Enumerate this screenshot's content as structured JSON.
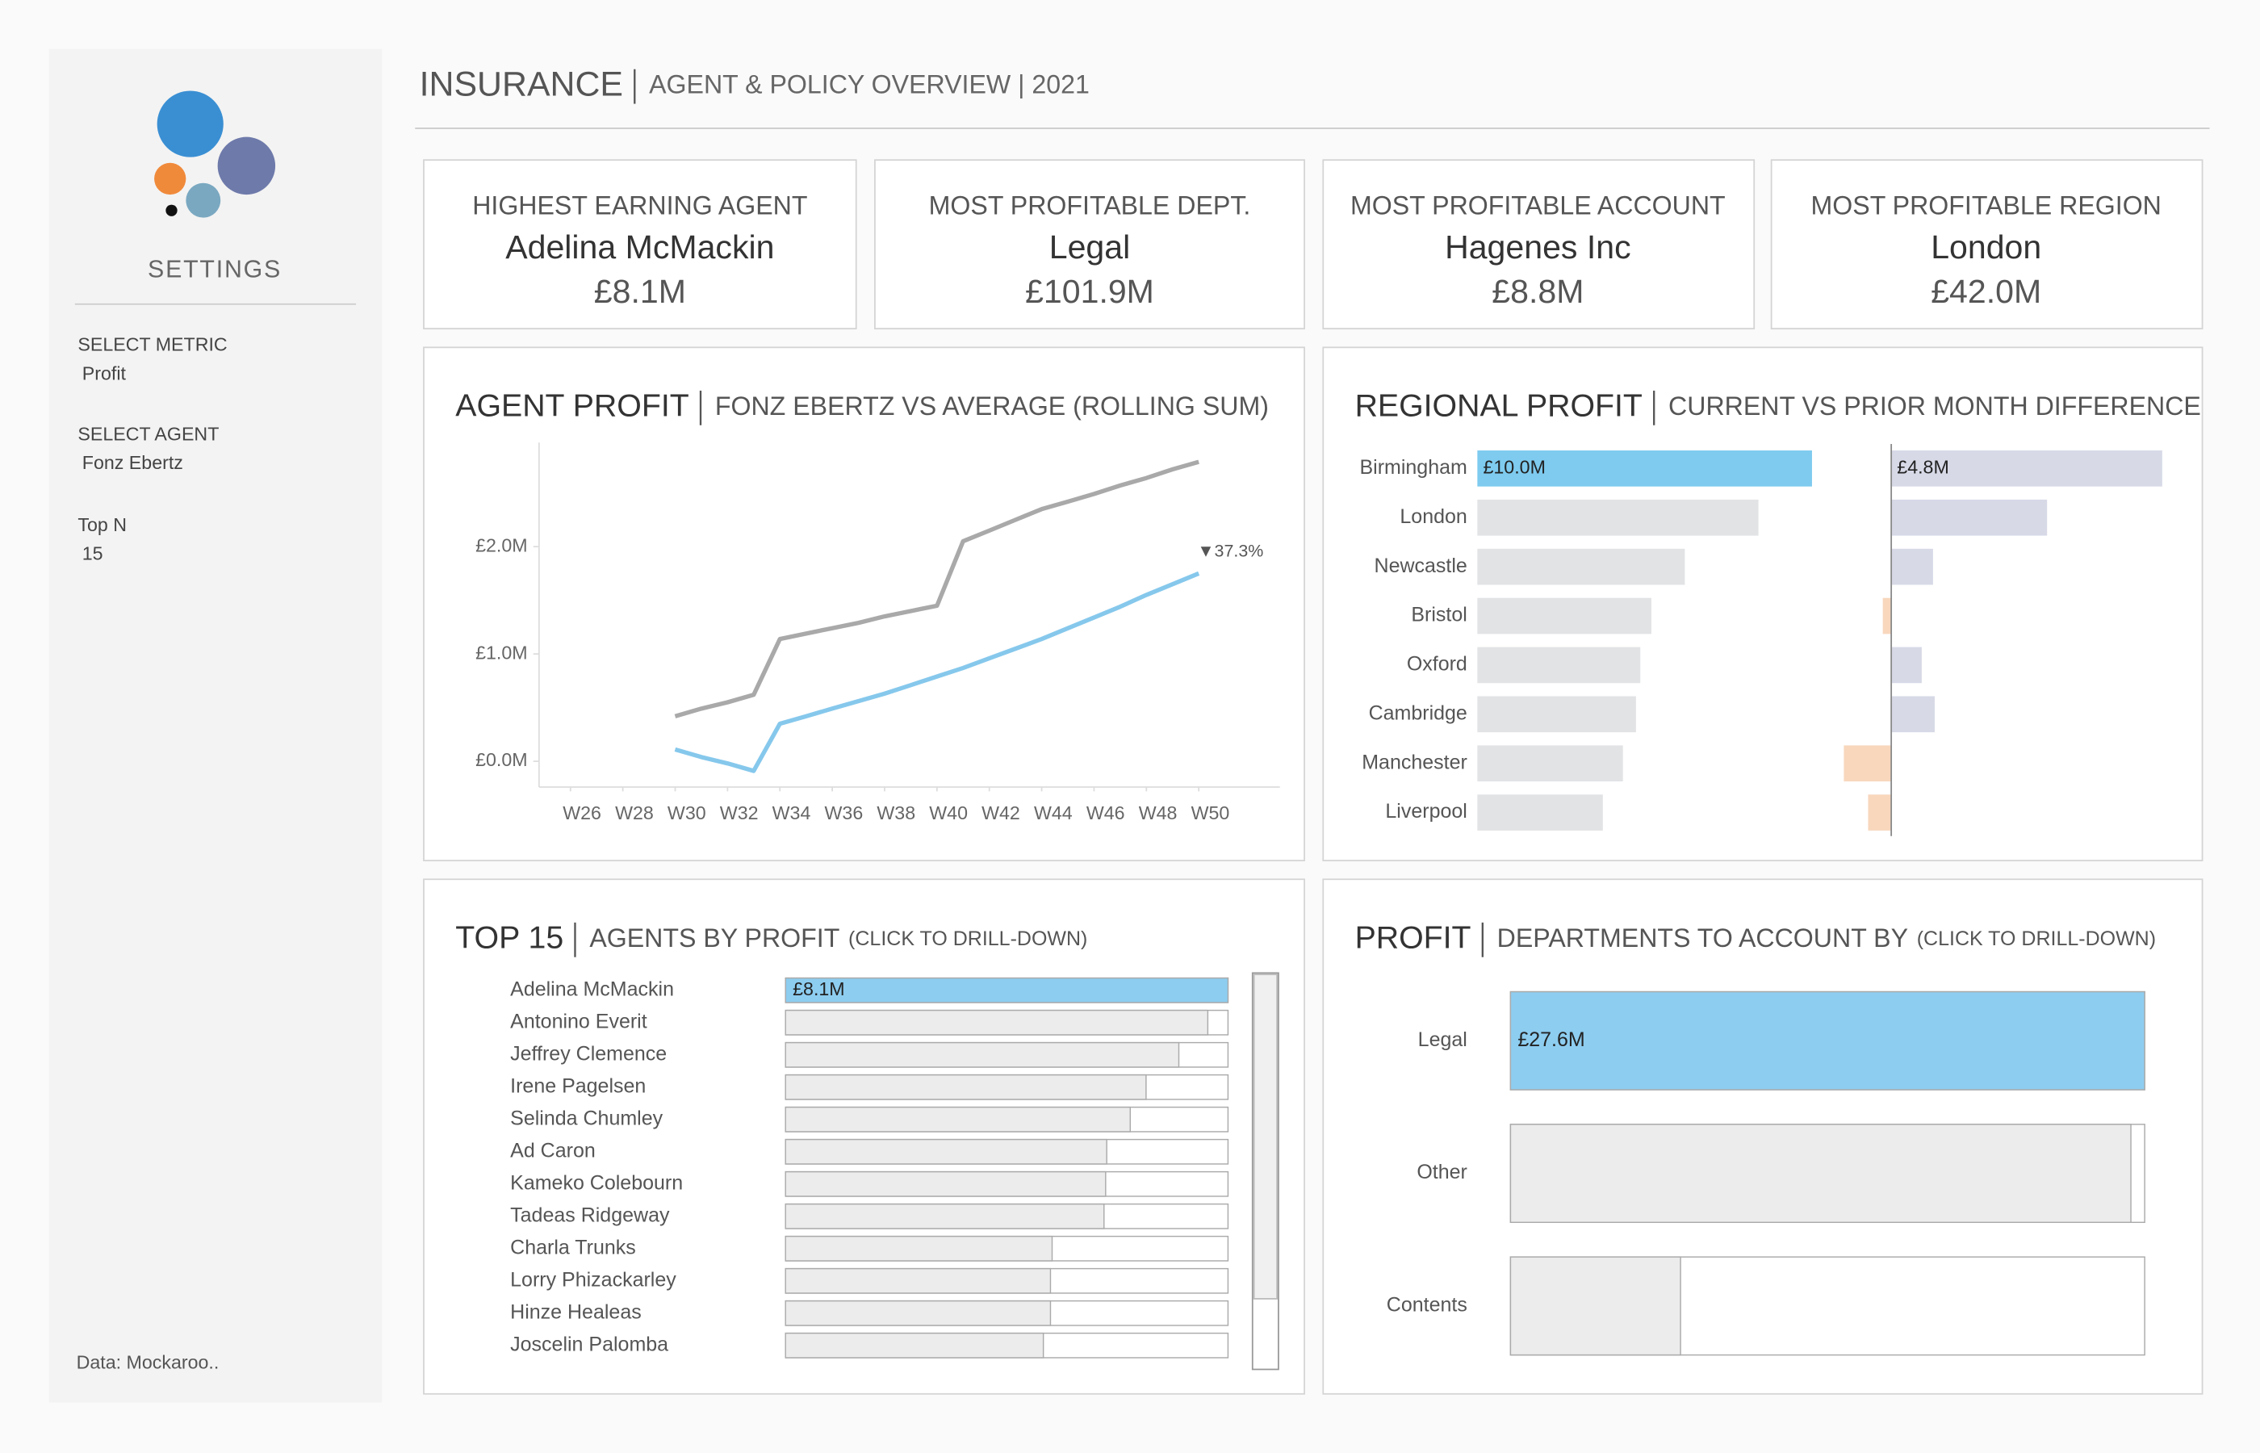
{
  "header": {
    "title": "INSURANCE",
    "subtitle": "AGENT & POLICY OVERVIEW | 2021"
  },
  "sidebar": {
    "heading": "SETTINGS",
    "filters": [
      {
        "label": "SELECT METRIC",
        "value": "Profit"
      },
      {
        "label": "SELECT AGENT",
        "value": "Fonz Ebertz"
      },
      {
        "label": "Top N",
        "value": 15
      }
    ],
    "source": "Data: Mockaroo.."
  },
  "kpis": [
    {
      "label": "HIGHEST EARNING AGENT",
      "name": "Adelina McMackin",
      "value": "£8.1M"
    },
    {
      "label": "MOST PROFITABLE DEPT.",
      "name": "Legal",
      "value": "£101.9M"
    },
    {
      "label": "MOST PROFITABLE ACCOUNT",
      "name": "Hagenes Inc",
      "value": "£8.8M"
    },
    {
      "label": "MOST PROFITABLE REGION",
      "name": "London",
      "value": "£42.0M"
    }
  ],
  "chart_data": [
    {
      "type": "line",
      "title": "AGENT PROFIT",
      "subtitle": "FONZ EBERTZ VS AVERAGE (ROLLING SUM)",
      "x": [
        30,
        31,
        32,
        33,
        34,
        35,
        36,
        37,
        38,
        39,
        40,
        41,
        42,
        43,
        44,
        45,
        46,
        47,
        48,
        49,
        50
      ],
      "series": [
        {
          "color": "#a9a9a9",
          "values": [
            0.42,
            0.49,
            0.55,
            0.62,
            1.14,
            1.19,
            1.24,
            1.29,
            1.35,
            1.4,
            1.45,
            2.05,
            2.15,
            2.25,
            2.35,
            2.42,
            2.49,
            2.57,
            2.64,
            2.72,
            2.79
          ]
        },
        {
          "color": "#86c8ec",
          "values": [
            0.11,
            0.04,
            -0.02,
            -0.09,
            0.35,
            0.42,
            0.49,
            0.56,
            0.63,
            0.71,
            0.79,
            0.87,
            0.96,
            1.05,
            1.14,
            1.24,
            1.34,
            1.44,
            1.55,
            1.65,
            1.75
          ]
        }
      ],
      "xlim": [
        24.8,
        53.1
      ],
      "xticks": [
        {
          "value": 26,
          "label": "W26"
        },
        {
          "value": 28,
          "label": "W28"
        },
        {
          "value": 30,
          "label": "W30"
        },
        {
          "value": 32,
          "label": "W32"
        },
        {
          "value": 34,
          "label": "W34"
        },
        {
          "value": 36,
          "label": "W36"
        },
        {
          "value": 38,
          "label": "W38"
        },
        {
          "value": 40,
          "label": "W40"
        },
        {
          "value": 42,
          "label": "W42"
        },
        {
          "value": 44,
          "label": "W44"
        },
        {
          "value": 46,
          "label": "W46"
        },
        {
          "value": 48,
          "label": "W48"
        },
        {
          "value": 50,
          "label": "W50"
        }
      ],
      "ylim": [
        -0.24,
        2.97
      ],
      "yticks": [
        {
          "value": 0,
          "label": "£0.0M"
        },
        {
          "value": 1,
          "label": "£1.0M"
        },
        {
          "value": 2,
          "label": "£2.0M"
        }
      ],
      "annotation": "▼37.3%"
    },
    {
      "type": "bar",
      "orientation": "horizontal",
      "title": "REGIONAL PROFIT",
      "subtitle": "CURRENT VS PRIOR MONTH DIFFERENCE",
      "categories": [
        "Birmingham",
        "London",
        "Newcastle",
        "Bristol",
        "Oxford",
        "Cambridge",
        "Manchester",
        "Liverpool"
      ],
      "series": [
        {
          "values": [
            10.0,
            8.4,
            6.2,
            5.2,
            4.87,
            4.74,
            4.35,
            3.75
          ],
          "value_labels": [
            "£10.0M",
            null,
            null,
            null,
            null,
            null,
            null,
            null
          ],
          "colors": [
            "#7ecbef",
            "#e2e3e5",
            "#e2e3e5",
            "#e2e3e5",
            "#e2e3e5",
            "#e2e3e5",
            "#e2e3e5",
            "#e2e3e5"
          ],
          "xlim": [
            0,
            11.5
          ]
        },
        {
          "values": [
            4.8,
            2.76,
            0.74,
            -0.15,
            0.54,
            0.77,
            -0.84,
            -0.41
          ],
          "value_labels": [
            "£4.8M",
            null,
            null,
            null,
            null,
            null,
            null,
            null
          ],
          "positive_color": "#d7d9e7",
          "negative_color": "#f8d7bd",
          "xlim": [
            -1.0,
            5.0
          ]
        }
      ]
    },
    {
      "type": "bar",
      "orientation": "horizontal",
      "title": "TOP 15",
      "subtitle": "AGENTS BY PROFIT",
      "note": "(CLICK TO DRILL-DOWN)",
      "categories": [
        "Adelina McMackin",
        "Antonino Everit",
        "Jeffrey Clemence",
        "Irene Pagelsen",
        "Selinda Chumley",
        "Ad Caron",
        "Kameko Colebourn",
        "Tadeas Ridgeway",
        "Charla Trunks",
        "Lorry Phizackarley",
        "Hinze Healeas",
        "Joscelin Palomba"
      ],
      "values": [
        8.1,
        7.73,
        7.2,
        6.6,
        6.31,
        5.88,
        5.86,
        5.83,
        4.88,
        4.85,
        4.85,
        4.72
      ],
      "value_labels": [
        "£8.1M",
        null,
        null,
        null,
        null,
        null,
        null,
        null,
        null,
        null,
        null,
        null
      ],
      "colors": [
        "#8dcdf0",
        "#ececec",
        "#ececec",
        "#ececec",
        "#ececec",
        "#ececec",
        "#ececec",
        "#ececec",
        "#ececec",
        "#ececec",
        "#ececec",
        "#ececec"
      ],
      "xlim": [
        0,
        8.1
      ]
    },
    {
      "type": "bar",
      "orientation": "horizontal",
      "title": "PROFIT",
      "subtitle": "DEPARTMENTS TO ACCOUNT BY",
      "note": "(CLICK TO DRILL-DOWN)",
      "categories": [
        "Legal",
        "Other",
        "Contents"
      ],
      "values": [
        27.6,
        27.0,
        7.4
      ],
      "value_labels": [
        "£27.6M",
        null,
        null
      ],
      "colors": [
        "#8dcdf0",
        "#ececec",
        "#ececec"
      ],
      "xlim": [
        0,
        27.6
      ]
    }
  ]
}
